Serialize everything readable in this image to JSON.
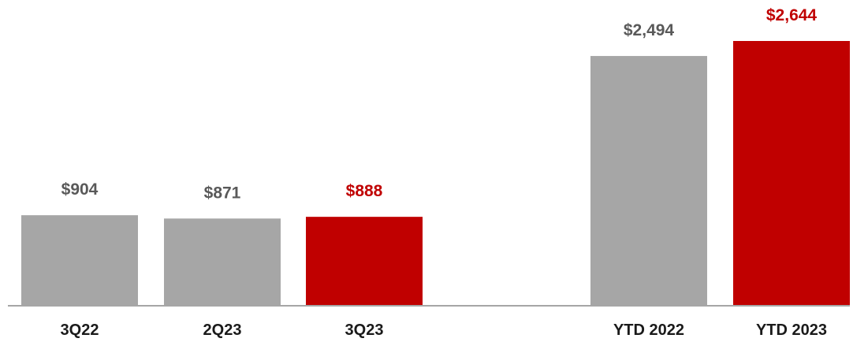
{
  "chart_data": {
    "type": "bar",
    "title": "",
    "xlabel": "",
    "ylabel": "",
    "grid": false,
    "ylim": [
      0,
      2644
    ],
    "categories": [
      "3Q22",
      "2Q23",
      "3Q23",
      "YTD 2022",
      "YTD 2023"
    ],
    "values": [
      904,
      871,
      888,
      2494,
      2644
    ],
    "data_labels": [
      "$904",
      "$871",
      "$888",
      "$2,494",
      "$2,644"
    ],
    "highlight": [
      false,
      false,
      true,
      false,
      true
    ],
    "groups": [
      [
        "3Q22",
        "2Q23",
        "3Q23"
      ],
      [
        "YTD 2022",
        "YTD 2023"
      ]
    ]
  },
  "colors": {
    "bar_default": "#a6a6a6",
    "bar_highlight": "#c00000",
    "label_default": "#595959",
    "label_highlight": "#c00000",
    "axis": "#a6a6a6"
  }
}
